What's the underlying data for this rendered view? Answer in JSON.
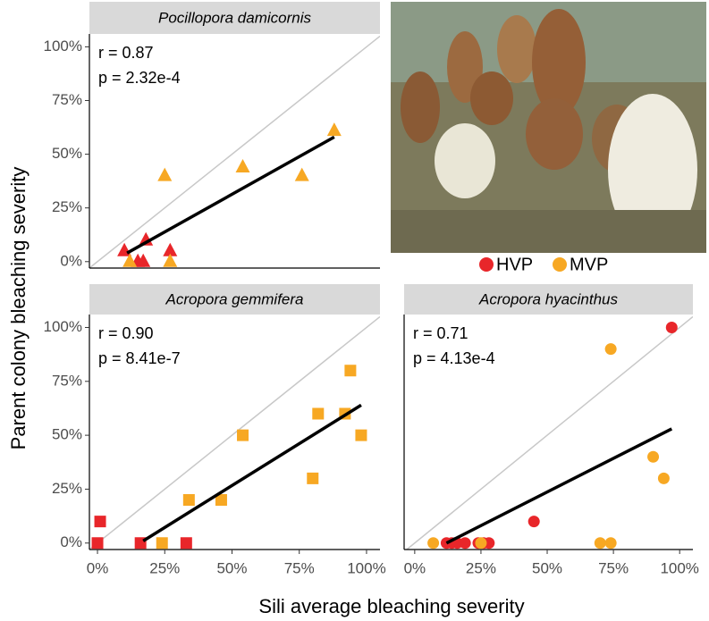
{
  "chart_data": [
    {
      "type": "scatter",
      "title": "Pocillopora damicornis",
      "marker": "triangle",
      "annotations": [
        "r = 0.87",
        "p = 2.32e-4"
      ],
      "ylabel": "Parent colony bleaching severity",
      "xlim": [
        -3,
        105
      ],
      "ylim": [
        -3,
        106
      ],
      "yticks": [
        {
          "value": 0,
          "label": "0%"
        },
        {
          "value": 25,
          "label": "25%"
        },
        {
          "value": 50,
          "label": "50%"
        },
        {
          "value": 75,
          "label": "75%"
        },
        {
          "value": 100,
          "label": "100%"
        }
      ],
      "series": [
        {
          "name": "HVP",
          "color": "#e8262a",
          "x": [
            10,
            18,
            15,
            17,
            27
          ],
          "y": [
            5,
            10,
            0,
            0,
            5
          ]
        },
        {
          "name": "MVP",
          "color": "#f7a823",
          "x": [
            12,
            25,
            27,
            54,
            76,
            88
          ],
          "y": [
            0,
            40,
            0,
            44,
            40,
            61
          ]
        }
      ],
      "fit": {
        "x": [
          11,
          88
        ],
        "y": [
          4,
          58
        ]
      }
    },
    {
      "type": "scatter",
      "title": "Acropora gemmifera",
      "marker": "square",
      "annotations": [
        "r = 0.90",
        "p = 8.41e-7"
      ],
      "xlabel": "Sili average bleaching severity",
      "xlim": [
        -3,
        105
      ],
      "ylim": [
        -3,
        106
      ],
      "xticks": [
        {
          "value": 0,
          "label": "0%"
        },
        {
          "value": 25,
          "label": "25%"
        },
        {
          "value": 50,
          "label": "50%"
        },
        {
          "value": 75,
          "label": "75%"
        },
        {
          "value": 100,
          "label": "100%"
        }
      ],
      "yticks": [
        {
          "value": 0,
          "label": "0%"
        },
        {
          "value": 25,
          "label": "25%"
        },
        {
          "value": 50,
          "label": "50%"
        },
        {
          "value": 75,
          "label": "75%"
        },
        {
          "value": 100,
          "label": "100%"
        }
      ],
      "series": [
        {
          "name": "HVP",
          "color": "#e8262a",
          "x": [
            1,
            0,
            16,
            33
          ],
          "y": [
            10,
            0,
            0,
            0
          ]
        },
        {
          "name": "MVP",
          "color": "#f7a823",
          "x": [
            24,
            34,
            46,
            54,
            80,
            82,
            92,
            94,
            98
          ],
          "y": [
            0,
            20,
            20,
            50,
            30,
            60,
            60,
            80,
            50
          ]
        }
      ],
      "fit": {
        "x": [
          17,
          98
        ],
        "y": [
          1,
          64
        ]
      }
    },
    {
      "type": "scatter",
      "title": "Acropora hyacinthus",
      "marker": "circle",
      "annotations": [
        "r = 0.71",
        "p = 4.13e-4"
      ],
      "xlim": [
        -4,
        105
      ],
      "ylim": [
        -3,
        106
      ],
      "xticks": [
        {
          "value": 0,
          "label": "0%"
        },
        {
          "value": 25,
          "label": "25%"
        },
        {
          "value": 50,
          "label": "50%"
        },
        {
          "value": 75,
          "label": "75%"
        },
        {
          "value": 100,
          "label": "100%"
        }
      ],
      "series": [
        {
          "name": "HVP",
          "color": "#e8262a",
          "x": [
            97,
            45,
            12,
            14,
            16,
            19,
            24,
            26,
            28
          ],
          "y": [
            100,
            10,
            0,
            0,
            0,
            0,
            0,
            0,
            0
          ]
        },
        {
          "name": "MVP",
          "color": "#f7a823",
          "x": [
            7,
            25,
            70,
            74,
            74,
            90,
            94
          ],
          "y": [
            0,
            0,
            0,
            0,
            90,
            40,
            30
          ]
        }
      ],
      "fit": {
        "x": [
          12,
          97
        ],
        "y": [
          0,
          53
        ]
      }
    }
  ]
}
